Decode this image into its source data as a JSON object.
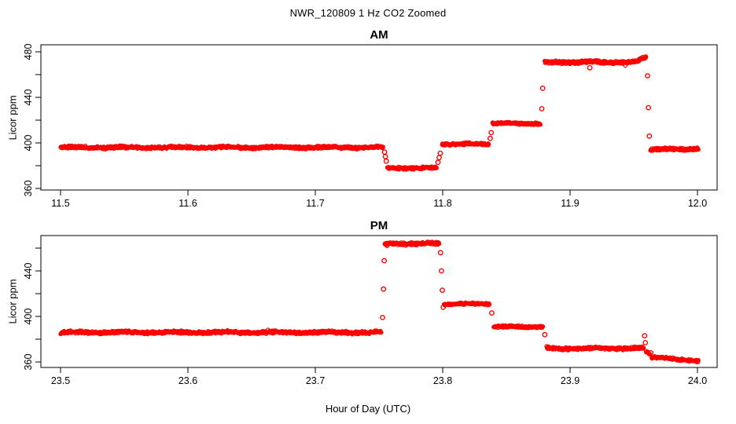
{
  "page": {
    "background": "#ffffff",
    "text_color": "#000000"
  },
  "header": {
    "title": "NWR_120809  1 Hz CO2 Zoomed"
  },
  "axes": {
    "y_label": "Licor ppm",
    "x_label": "Hour of Day (UTC)"
  },
  "chart_data": [
    {
      "type": "scatter",
      "panel": "top",
      "title": "AM",
      "ylabel": "Licor ppm",
      "xlabel": "Hour of Day (UTC)",
      "marker": "open-circle",
      "color": "#ff0000",
      "sample_rate_hz": 1,
      "xlim": [
        11.48,
        12.02
      ],
      "ylim": [
        358,
        488
      ],
      "grid": false,
      "xticks": [
        {
          "v": 11.5,
          "label": "11.5"
        },
        {
          "v": 11.6,
          "label": "11.6"
        },
        {
          "v": 11.7,
          "label": "11.7"
        },
        {
          "v": 11.8,
          "label": "11.8"
        },
        {
          "v": 11.9,
          "label": "11.9"
        },
        {
          "v": 12.0,
          "label": "12.0"
        }
      ],
      "yticks_major": [
        {
          "v": 360,
          "label": "360"
        },
        {
          "v": 400,
          "label": "400"
        },
        {
          "v": 440,
          "label": "440"
        },
        {
          "v": 480,
          "label": "480"
        }
      ],
      "yticks_minor": [
        380,
        420,
        460
      ],
      "segments": [
        {
          "t0": 11.5,
          "t1": 11.7535,
          "v": 396,
          "v_end": 396,
          "noise": 1.3
        },
        {
          "t0": 11.7565,
          "t1": 11.7955,
          "v": 378,
          "v_end": 378,
          "noise": 1.1
        },
        {
          "t0": 11.7995,
          "t1": 11.8365,
          "v": 399,
          "v_end": 399,
          "noise": 1.1
        },
        {
          "t0": 11.839,
          "t1": 11.877,
          "v": 417,
          "v_end": 417,
          "noise": 1.1
        },
        {
          "t0": 11.88,
          "t1": 11.952,
          "v": 471,
          "v_end": 471,
          "noise": 1.4
        },
        {
          "t0": 11.952,
          "t1": 11.96,
          "v": 472,
          "v_end": 476,
          "noise": 1.3
        },
        {
          "t0": 11.963,
          "t1": 12.001,
          "v": 394,
          "v_end": 395,
          "noise": 1.2
        }
      ],
      "transition_points": [
        {
          "t": 11.7543,
          "v": 392
        },
        {
          "t": 11.755,
          "v": 388
        },
        {
          "t": 11.7557,
          "v": 384
        },
        {
          "t": 11.7963,
          "v": 383
        },
        {
          "t": 11.7972,
          "v": 387
        },
        {
          "t": 11.7981,
          "v": 391
        },
        {
          "t": 11.8373,
          "v": 404
        },
        {
          "t": 11.8381,
          "v": 409
        },
        {
          "t": 11.8778,
          "v": 430
        },
        {
          "t": 11.8785,
          "v": 448
        },
        {
          "t": 11.9155,
          "v": 466
        },
        {
          "t": 11.9608,
          "v": 459
        },
        {
          "t": 11.9615,
          "v": 431
        },
        {
          "t": 11.9622,
          "v": 406
        }
      ]
    },
    {
      "type": "scatter",
      "panel": "bottom",
      "title": "PM",
      "ylabel": "Licor ppm",
      "xlabel": "Hour of Day (UTC)",
      "marker": "open-circle",
      "color": "#ff0000",
      "sample_rate_hz": 1,
      "xlim": [
        23.48,
        24.02
      ],
      "ylim": [
        356,
        470
      ],
      "grid": false,
      "xticks": [
        {
          "v": 23.5,
          "label": "23.5"
        },
        {
          "v": 23.6,
          "label": "23.6"
        },
        {
          "v": 23.7,
          "label": "23.7"
        },
        {
          "v": 23.8,
          "label": "23.8"
        },
        {
          "v": 23.9,
          "label": "23.9"
        },
        {
          "v": 24.0,
          "label": "24.0"
        }
      ],
      "yticks_major": [
        {
          "v": 360,
          "label": "360"
        },
        {
          "v": 400,
          "label": "400"
        },
        {
          "v": 440,
          "label": "440"
        }
      ],
      "yticks_minor": [
        380,
        420,
        460
      ],
      "segments": [
        {
          "t0": 23.5,
          "t1": 23.752,
          "v": 386,
          "v_end": 386,
          "noise": 1.3
        },
        {
          "t0": 23.7545,
          "t1": 23.7975,
          "v": 464,
          "v_end": 464,
          "noise": 1.4
        },
        {
          "t0": 23.801,
          "t1": 23.837,
          "v": 411,
          "v_end": 411,
          "noise": 1.1
        },
        {
          "t0": 23.84,
          "t1": 23.879,
          "v": 391,
          "v_end": 391,
          "noise": 1.1
        },
        {
          "t0": 23.8815,
          "t1": 23.958,
          "v": 372,
          "v_end": 372,
          "noise": 1.3
        },
        {
          "t0": 23.9595,
          "t1": 23.963,
          "v": 370,
          "v_end": 366,
          "noise": 1.6
        },
        {
          "t0": 23.964,
          "t1": 24.001,
          "v": 364,
          "v_end": 361,
          "noise": 1.1
        }
      ],
      "transition_points": [
        {
          "t": 23.7528,
          "v": 399
        },
        {
          "t": 23.7535,
          "v": 424
        },
        {
          "t": 23.7541,
          "v": 449
        },
        {
          "t": 23.7983,
          "v": 456
        },
        {
          "t": 23.799,
          "v": 440
        },
        {
          "t": 23.7997,
          "v": 423
        },
        {
          "t": 23.8004,
          "v": 408
        },
        {
          "t": 23.8385,
          "v": 403
        },
        {
          "t": 23.8802,
          "v": 384
        },
        {
          "t": 23.9585,
          "v": 383
        },
        {
          "t": 23.9591,
          "v": 377
        },
        {
          "t": 23.9634,
          "v": 368
        }
      ]
    }
  ]
}
